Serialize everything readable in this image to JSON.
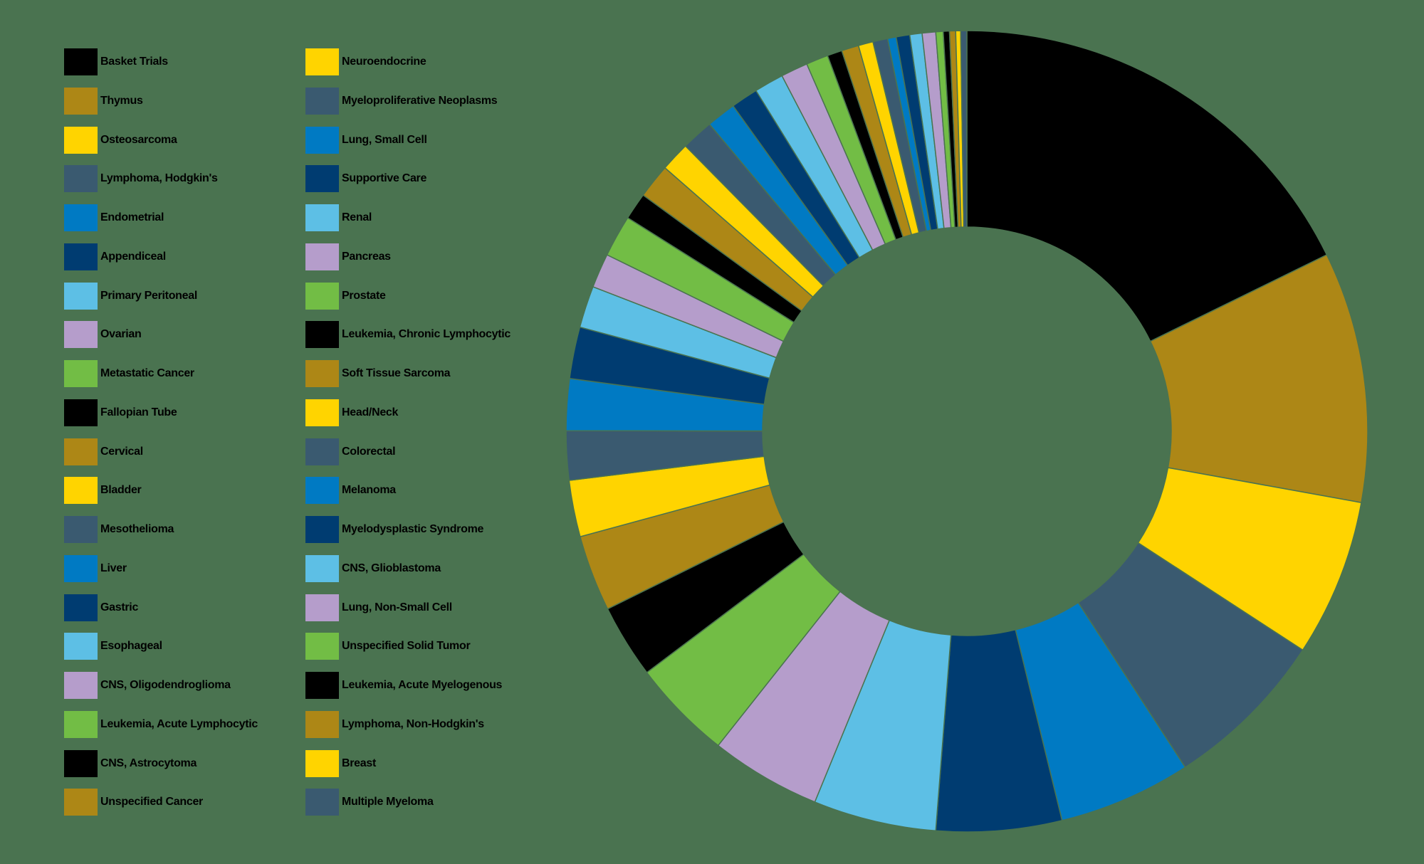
{
  "chart_data": {
    "type": "pie",
    "subtype": "donut",
    "title": "",
    "legend_position": "left",
    "legend_columns": 2,
    "start_angle_deg": 0,
    "direction": "clockwise",
    "units": "percent (estimated from slice angles)",
    "categories": [
      "Basket Trials",
      "Thymus",
      "Osteosarcoma",
      "Lymphoma, Hodgkin's",
      "Endometrial",
      "Appendiceal",
      "Primary Peritoneal",
      "Ovarian",
      "Metastatic Cancer",
      "Fallopian Tube",
      "Cervical",
      "Bladder",
      "Mesothelioma",
      "Liver",
      "Gastric",
      "Esophageal",
      "CNS, Oligodendroglioma",
      "Leukemia, Acute Lymphocytic",
      "CNS, Astrocytoma",
      "Unspecified Cancer",
      "Neuroendocrine",
      "Myeloproliferative Neoplasms",
      "Lung, Small Cell",
      "Supportive Care",
      "Renal",
      "Pancreas",
      "Prostate",
      "Leukemia, Chronic Lymphocytic",
      "Soft Tissue Sarcoma",
      "Head/Neck",
      "Colorectal",
      "Melanoma",
      "Myelodysplastic Syndrome",
      "CNS, Glioblastoma",
      "Lung, Non-Small Cell",
      "Unspecified Solid Tumor",
      "Leukemia, Acute Myelogenous",
      "Lymphoma, Non-Hodgkin's",
      "Breast",
      "Multiple Myeloma"
    ],
    "values": [
      17.9,
      10.2,
      6.4,
      6.7,
      5.4,
      5.1,
      5.0,
      4.5,
      4.1,
      3.0,
      3.1,
      2.3,
      2.0,
      2.1,
      2.1,
      1.7,
      1.4,
      1.7,
      1.1,
      1.4,
      1.2,
      1.3,
      1.2,
      1.1,
      1.2,
      1.1,
      0.9,
      0.6,
      0.7,
      0.6,
      0.6,
      0.35,
      0.55,
      0.5,
      0.55,
      0.3,
      0.25,
      0.25,
      0.2,
      0.25
    ],
    "colors": [
      "#000000",
      "#ad8716",
      "#ffd400",
      "#3a5a70",
      "#007ac3",
      "#003c71",
      "#5dbfe5",
      "#b59dcb",
      "#72bd45",
      "#000000",
      "#ad8716",
      "#ffd400",
      "#3a5a70",
      "#007ac3",
      "#003c71",
      "#5dbfe5",
      "#b59dcb",
      "#72bd45",
      "#000000",
      "#ad8716",
      "#ffd400",
      "#3a5a70",
      "#007ac3",
      "#003c71",
      "#5dbfe5",
      "#b59dcb",
      "#72bd45",
      "#000000",
      "#ad8716",
      "#ffd400",
      "#3a5a70",
      "#007ac3",
      "#003c71",
      "#5dbfe5",
      "#b59dcb",
      "#72bd45",
      "#000000",
      "#ad8716",
      "#ffd400",
      "#3a5a70"
    ],
    "background": "#4a7350",
    "inner_radius_ratio": 0.51
  },
  "legend": {
    "columns": [
      [
        "Basket Trials",
        "Thymus",
        "Osteosarcoma",
        "Lymphoma, Hodgkin's",
        "Endometrial",
        "Appendiceal",
        "Primary Peritoneal",
        "Ovarian",
        "Metastatic Cancer",
        "Fallopian Tube",
        "Cervical",
        "Bladder",
        "Mesothelioma",
        "Liver",
        "Gastric",
        "Esophageal",
        "CNS, Oligodendroglioma",
        "Leukemia, Acute Lymphocytic",
        "CNS, Astrocytoma",
        "Unspecified Cancer"
      ],
      [
        "Neuroendocrine",
        "Myeloproliferative Neoplasms",
        "Lung, Small Cell",
        "Supportive Care",
        "Renal",
        "Pancreas",
        "Prostate",
        "Leukemia, Chronic Lymphocytic",
        "Soft Tissue Sarcoma",
        "Head/Neck",
        "Colorectal",
        "Melanoma",
        "Myelodysplastic Syndrome",
        "CNS, Glioblastoma",
        "Lung, Non-Small Cell",
        "Unspecified Solid Tumor",
        "Leukemia, Acute Myelogenous",
        "Lymphoma, Non-Hodgkin's",
        "Breast",
        "Multiple Myeloma"
      ]
    ]
  }
}
